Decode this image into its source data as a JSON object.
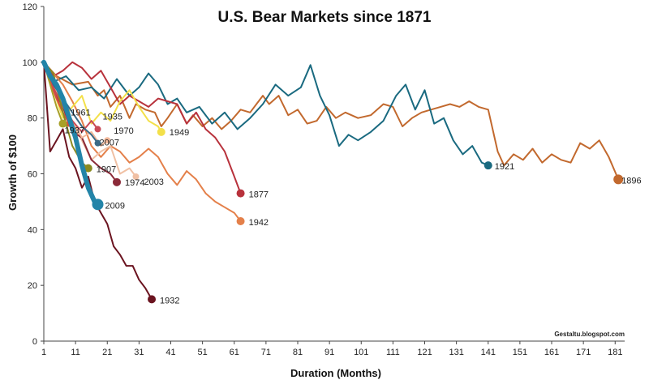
{
  "chart_data": {
    "type": "line",
    "title": "U.S. Bear Markets since 1871",
    "xlabel": "Duration (Months)",
    "ylabel": "Growth of $100",
    "xlim": [
      1,
      184
    ],
    "ylim": [
      0,
      120
    ],
    "xticks": [
      1,
      11,
      21,
      31,
      41,
      51,
      61,
      71,
      81,
      91,
      101,
      111,
      121,
      131,
      141,
      151,
      161,
      171,
      181
    ],
    "yticks": [
      0,
      20,
      40,
      60,
      80,
      100,
      120
    ],
    "grid": false,
    "legend": "none (series labeled at line ends)",
    "credit": "Gestaltu.blogspot.com",
    "series": [
      {
        "name": "1896",
        "color": "#c2692e",
        "width": 2,
        "end_dot": 6,
        "x": [
          1,
          5,
          10,
          15,
          18,
          20,
          22,
          25,
          28,
          30,
          33,
          36,
          38,
          40,
          43,
          46,
          48,
          51,
          54,
          57,
          60,
          63,
          66,
          70,
          72,
          75,
          78,
          81,
          84,
          87,
          90,
          93,
          96,
          100,
          104,
          108,
          111,
          114,
          117,
          120,
          123,
          126,
          129,
          132,
          135,
          138,
          141,
          144,
          146,
          149,
          152,
          155,
          158,
          161,
          164,
          167,
          170,
          173,
          176,
          179,
          182
        ],
        "y": [
          100,
          95,
          92,
          93,
          88,
          90,
          84,
          88,
          80,
          85,
          83,
          82,
          77,
          80,
          85,
          78,
          81,
          77,
          80,
          76,
          79,
          83,
          82,
          88,
          85,
          88,
          81,
          83,
          78,
          79,
          84,
          80,
          82,
          80,
          81,
          85,
          84,
          77,
          80,
          82,
          83,
          84,
          85,
          84,
          86,
          84,
          83,
          68,
          63,
          67,
          65,
          69,
          64,
          67,
          65,
          64,
          71,
          69,
          72,
          66,
          58
        ]
      },
      {
        "name": "1921",
        "color": "#1a6a80",
        "width": 2,
        "end_dot": 5,
        "x": [
          1,
          4,
          8,
          12,
          16,
          20,
          24,
          28,
          31,
          34,
          37,
          40,
          43,
          46,
          50,
          54,
          58,
          62,
          66,
          70,
          74,
          78,
          82,
          85,
          88,
          91,
          94,
          97,
          100,
          104,
          108,
          112,
          115,
          118,
          121,
          124,
          127,
          130,
          133,
          136,
          139,
          141
        ],
        "y": [
          100,
          93,
          95,
          90,
          91,
          87,
          94,
          88,
          91,
          96,
          92,
          85,
          87,
          82,
          84,
          78,
          82,
          76,
          80,
          85,
          92,
          88,
          91,
          99,
          88,
          81,
          70,
          74,
          72,
          75,
          79,
          88,
          92,
          83,
          90,
          78,
          80,
          72,
          67,
          70,
          64,
          63
        ]
      },
      {
        "name": "1877",
        "color": "#b8323c",
        "width": 2,
        "end_dot": 5,
        "x": [
          1,
          4,
          7,
          10,
          13,
          16,
          19,
          22,
          25,
          28,
          31,
          34,
          37,
          40,
          43,
          46,
          49,
          52,
          55,
          58,
          61,
          63
        ],
        "y": [
          100,
          95,
          97,
          100,
          98,
          94,
          97,
          91,
          85,
          88,
          86,
          84,
          87,
          86,
          85,
          78,
          82,
          76,
          73,
          68,
          59,
          53
        ]
      },
      {
        "name": "1942",
        "color": "#e4804a",
        "width": 2,
        "end_dot": 5,
        "x": [
          1,
          4,
          7,
          10,
          13,
          16,
          19,
          22,
          25,
          28,
          31,
          34,
          37,
          40,
          43,
          46,
          49,
          52,
          55,
          58,
          61,
          63
        ],
        "y": [
          100,
          96,
          92,
          86,
          79,
          70,
          66,
          70,
          68,
          64,
          66,
          69,
          66,
          60,
          56,
          61,
          58,
          53,
          50,
          48,
          46,
          43
        ]
      },
      {
        "name": "1932",
        "color": "#6b1420",
        "width": 2,
        "end_dot": 5,
        "x": [
          1,
          3,
          5,
          7,
          9,
          11,
          13,
          15,
          17,
          19,
          21,
          23,
          25,
          27,
          29,
          31,
          33,
          35
        ],
        "y": [
          100,
          68,
          72,
          76,
          66,
          62,
          55,
          59,
          50,
          46,
          42,
          34,
          31,
          27,
          27,
          22,
          19,
          15
        ]
      },
      {
        "name": "1949",
        "color": "#f3e04a",
        "width": 2,
        "end_dot": 5,
        "x": [
          1,
          4,
          7,
          10,
          13,
          16,
          19,
          22,
          25,
          28,
          31,
          34,
          37,
          38
        ],
        "y": [
          100,
          90,
          80,
          84,
          88,
          78,
          82,
          79,
          86,
          90,
          84,
          79,
          77,
          75
        ]
      },
      {
        "name": "2003",
        "color": "#f0c0a4",
        "width": 2,
        "end_dot": 4,
        "x": [
          1,
          4,
          7,
          10,
          13,
          16,
          19,
          22,
          25,
          28,
          30
        ],
        "y": [
          100,
          90,
          82,
          78,
          72,
          65,
          68,
          70,
          60,
          62,
          59
        ]
      },
      {
        "name": "1974",
        "color": "#8b2a38",
        "width": 2,
        "end_dot": 5,
        "x": [
          1,
          4,
          7,
          10,
          13,
          16,
          19,
          22,
          24
        ],
        "y": [
          100,
          90,
          84,
          75,
          73,
          65,
          62,
          60,
          57
        ]
      },
      {
        "name": "1970",
        "color": "#f2b89a",
        "width": 2,
        "end_dot": 4,
        "x": [
          1,
          4,
          7,
          10,
          13,
          16,
          19,
          21
        ],
        "y": [
          100,
          92,
          85,
          79,
          73,
          75,
          70,
          72
        ]
      },
      {
        "name": "1935",
        "color": "#c94a56",
        "width": 2,
        "end_dot": 4,
        "x": [
          1,
          4,
          7,
          10,
          13,
          16,
          18
        ],
        "y": [
          100,
          91,
          84,
          79,
          75,
          79,
          76
        ]
      },
      {
        "name": "2007",
        "color": "#3a6a86",
        "width": 2,
        "end_dot": 4,
        "x": [
          1,
          4,
          7,
          10,
          13,
          16,
          18
        ],
        "y": [
          100,
          92,
          87,
          82,
          77,
          74,
          71
        ]
      },
      {
        "name": "1961",
        "color": "#d84c40",
        "width": 2,
        "end_dot": 4,
        "x": [
          1,
          3,
          5,
          7,
          9
        ],
        "y": [
          100,
          93,
          87,
          82,
          78
        ]
      },
      {
        "name": "1907",
        "color": "#8a8a20",
        "width": 2,
        "end_dot": 5,
        "x": [
          1,
          4,
          7,
          10,
          13,
          15
        ],
        "y": [
          100,
          96,
          82,
          70,
          64,
          62
        ]
      },
      {
        "name": "1937",
        "color": "#a8a028",
        "width": 2,
        "end_dot": 5,
        "x": [
          1,
          3,
          5,
          7
        ],
        "y": [
          100,
          92,
          84,
          78
        ]
      },
      {
        "name": "2009",
        "color": "#2384a8",
        "width": 6,
        "end_dot": 7,
        "x": [
          1,
          3,
          5,
          7,
          9,
          11,
          13,
          15,
          17,
          18
        ],
        "y": [
          100,
          95,
          92,
          87,
          80,
          73,
          63,
          55,
          50,
          49
        ]
      }
    ],
    "end_labels": [
      {
        "text": "1896",
        "series": "1896"
      },
      {
        "text": "1921",
        "series": "1921"
      },
      {
        "text": "1877",
        "series": "1877"
      },
      {
        "text": "1942",
        "series": "1942"
      },
      {
        "text": "1932",
        "series": "1932"
      },
      {
        "text": "1949",
        "series": "1949"
      },
      {
        "text": "2003",
        "series": "2003"
      },
      {
        "text": "1974",
        "series": "1974"
      },
      {
        "text": "1970",
        "series": "1970"
      },
      {
        "text": "1935",
        "series": "1935"
      },
      {
        "text": "2007",
        "series": "2007"
      },
      {
        "text": "1961",
        "series": "1961"
      },
      {
        "text": "1907",
        "series": "1907"
      },
      {
        "text": "1937",
        "series": "1937"
      },
      {
        "text": "2009",
        "series": "2009"
      }
    ]
  }
}
